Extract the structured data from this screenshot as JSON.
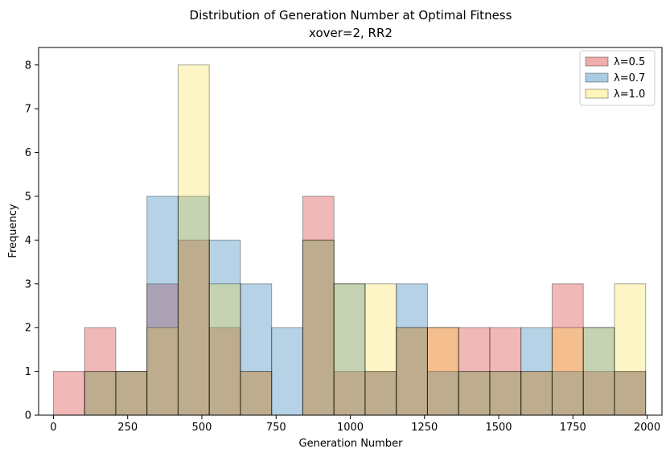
{
  "chart_data": {
    "type": "histogram",
    "title": "Distribution of Generation Number at Optimal Fitness",
    "subtitle": "xover=2, RR2",
    "xlabel": "Generation Number",
    "ylabel": "Frequency",
    "xlim": [
      -50,
      2050
    ],
    "ylim": [
      0,
      8.4
    ],
    "xticks": [
      0,
      250,
      500,
      750,
      1000,
      1250,
      1500,
      1750,
      2000
    ],
    "yticks": [
      0,
      1,
      2,
      3,
      4,
      5,
      6,
      7,
      8
    ],
    "grid": false,
    "legend_position": "top-right",
    "bin_edges": [
      0,
      105,
      210,
      315,
      420,
      525,
      630,
      735,
      840,
      945,
      1050,
      1155,
      1260,
      1365,
      1470,
      1575,
      1680,
      1785,
      1890,
      1995
    ],
    "series": [
      {
        "name": "λ=0.5",
        "color": "#d62728",
        "alpha": 0.33,
        "values": [
          1,
          2,
          1,
          3,
          4,
          2,
          1,
          0,
          5,
          1,
          1,
          2,
          2,
          2,
          2,
          1,
          3,
          1,
          1
        ]
      },
      {
        "name": "λ=0.7",
        "color": "#1f77b4",
        "alpha": 0.33,
        "values": [
          0,
          1,
          1,
          5,
          5,
          4,
          3,
          2,
          4,
          3,
          1,
          3,
          1,
          1,
          1,
          2,
          1,
          2,
          1
        ]
      },
      {
        "name": "λ=1.0",
        "color": "#ffd700",
        "alpha": 0.22,
        "values": [
          0,
          1,
          1,
          2,
          8,
          3,
          1,
          0,
          4,
          3,
          3,
          2,
          2,
          1,
          1,
          1,
          2,
          2,
          3
        ]
      }
    ]
  }
}
